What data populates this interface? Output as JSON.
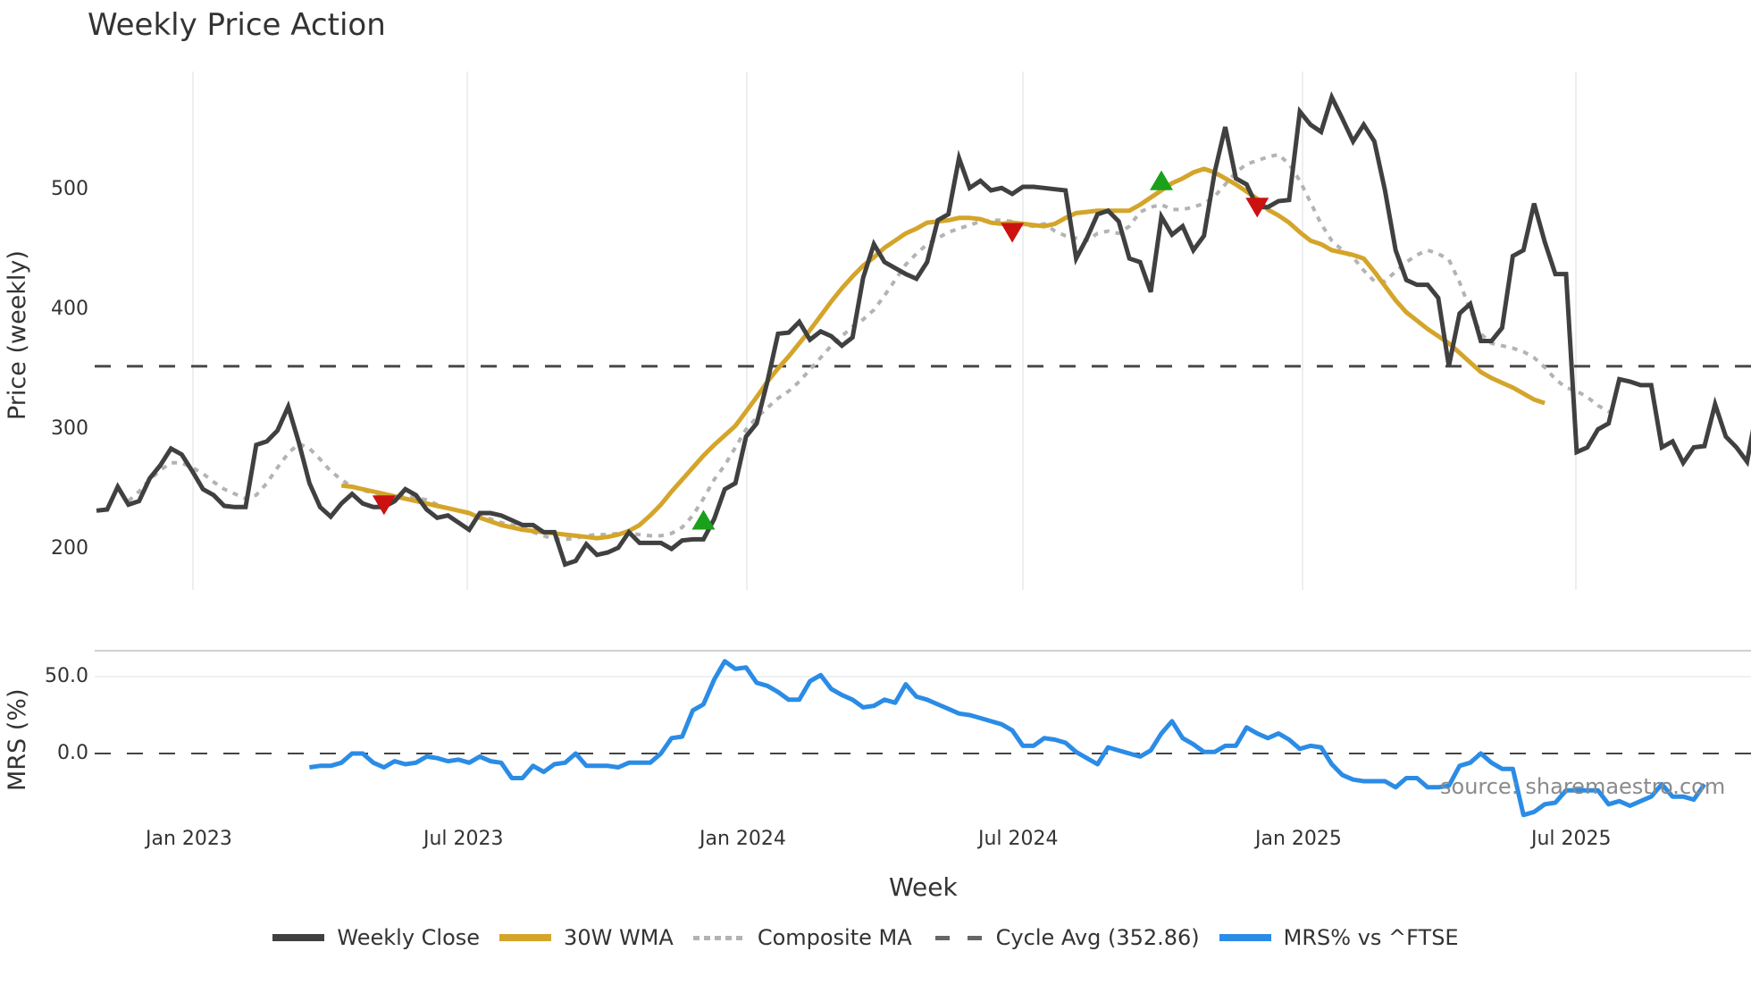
{
  "title": "Weekly Price Action",
  "source_text": "source: sharemaestro.com",
  "xaxis_title": "Week",
  "price_axis_title": "Price (weekly)",
  "mrs_axis_title": "MRS (%)",
  "legend": [
    {
      "label": "Weekly Close",
      "color": "#404040",
      "style": "solid"
    },
    {
      "label": "30W WMA",
      "color": "#d4a52a",
      "style": "solid"
    },
    {
      "label": "Composite MA",
      "color": "#b0b0b0",
      "style": "dotted"
    },
    {
      "label": "Cycle Avg (352.86)",
      "color": "#555555",
      "style": "dashed"
    },
    {
      "label": "MRS% vs ^FTSE",
      "color": "#2b8ce6",
      "style": "solid"
    }
  ],
  "chart_data": [
    {
      "type": "line",
      "title": "Weekly Price Action",
      "xlabel": "Week",
      "ylabel": "Price (weekly)",
      "x_tick_labels": [
        "Jan 2023",
        "Jul 2023",
        "Jan 2024",
        "Jul 2024",
        "Jan 2025",
        "Jul 2025"
      ],
      "y_ticks": [
        200,
        300,
        400,
        500
      ],
      "ylim": [
        168,
        590
      ],
      "grid": true,
      "legend_position": "bottom",
      "reference_lines": [
        {
          "name": "Cycle Avg (352.86)",
          "value": 352.86,
          "style": "dashed"
        }
      ],
      "markers": [
        {
          "type": "sell",
          "shape": "triangle-down",
          "color": "#cc1111",
          "week_index": 27,
          "value": 238
        },
        {
          "type": "buy",
          "shape": "triangle-up",
          "color": "#1aa01a",
          "week_index": 57,
          "value": 223
        },
        {
          "type": "sell",
          "shape": "triangle-down",
          "color": "#cc1111",
          "week_index": 86,
          "value": 466
        },
        {
          "type": "buy",
          "shape": "triangle-up",
          "color": "#1aa01a",
          "week_index": 100,
          "value": 507
        },
        {
          "type": "sell",
          "shape": "triangle-down",
          "color": "#cc1111",
          "week_index": 109,
          "value": 487
        }
      ],
      "series": [
        {
          "name": "Weekly Close",
          "start_week_index": 0,
          "values": [
            232,
            233,
            252,
            237,
            240,
            259,
            270,
            284,
            279,
            265,
            250,
            245,
            236,
            235,
            235,
            287,
            290,
            299,
            319,
            289,
            255,
            235,
            227,
            238,
            246,
            238,
            235,
            235,
            240,
            250,
            245,
            233,
            226,
            228,
            222,
            216,
            230,
            230,
            228,
            224,
            220,
            220,
            214,
            214,
            187,
            190,
            204,
            195,
            197,
            201,
            214,
            205,
            205,
            205,
            200,
            207,
            208,
            208,
            225,
            250,
            255,
            294,
            305,
            340,
            380,
            381,
            390,
            375,
            382,
            378,
            370,
            377,
            427,
            455,
            440,
            435,
            430,
            426,
            440,
            475,
            480,
            527,
            502,
            508,
            500,
            502,
            497,
            503,
            503,
            502,
            501,
            500,
            443,
            460,
            480,
            483,
            474,
            443,
            440,
            415,
            478,
            463,
            470,
            450,
            462,
            515,
            553,
            510,
            505,
            486,
            486,
            491,
            492,
            566,
            555,
            549,
            578,
            560,
            541,
            555,
            541,
            500,
            450,
            425,
            421,
            421,
            410,
            353,
            397,
            405,
            374,
            374,
            385,
            445,
            450,
            489,
            457,
            430,
            430,
            281,
            285,
            300,
            305,
            342,
            340,
            337,
            337,
            285,
            290,
            272,
            285,
            286,
            321,
            294,
            285,
            273,
            320
          ]
        },
        {
          "name": "30W WMA",
          "start_week_index": 23,
          "values": [
            253,
            252,
            250,
            248,
            246,
            244,
            242,
            240,
            238,
            236,
            234,
            232,
            230,
            226,
            223,
            220,
            218,
            216,
            215,
            214,
            213,
            212,
            211,
            210,
            209,
            210,
            212,
            215,
            220,
            228,
            237,
            248,
            258,
            268,
            278,
            287,
            295,
            303,
            315,
            327,
            340,
            351,
            361,
            372,
            383,
            395,
            407,
            418,
            428,
            437,
            444,
            452,
            458,
            464,
            468,
            473,
            474,
            475,
            477,
            477,
            476,
            473,
            472,
            473,
            472,
            471,
            470,
            472,
            477,
            481,
            482,
            483,
            483,
            483,
            483,
            488,
            494,
            500,
            506,
            510,
            515,
            518,
            515,
            510,
            505,
            499,
            493,
            484,
            479,
            473,
            465,
            458,
            455,
            450,
            448,
            446,
            443,
            432,
            420,
            408,
            398,
            391,
            384,
            378,
            372,
            364,
            356,
            348,
            343,
            339,
            335,
            330,
            325,
            322
          ]
        },
        {
          "name": "Composite MA",
          "start_week_index": 3,
          "values": [
            240,
            248,
            258,
            266,
            272,
            272,
            268,
            263,
            256,
            250,
            246,
            242,
            245,
            255,
            268,
            280,
            288,
            284,
            275,
            265,
            258,
            252,
            249,
            247,
            245,
            244,
            244,
            243,
            241,
            237,
            234,
            232,
            230,
            228,
            225,
            222,
            220,
            218,
            214,
            211,
            208,
            208,
            209,
            211,
            212,
            212,
            213,
            213,
            212,
            211,
            211,
            213,
            218,
            228,
            242,
            258,
            270,
            285,
            300,
            310,
            318,
            326,
            332,
            340,
            350,
            360,
            370,
            378,
            386,
            392,
            400,
            412,
            425,
            438,
            447,
            455,
            460,
            465,
            468,
            471,
            474,
            475,
            475,
            474,
            471,
            470,
            472,
            466,
            462,
            460,
            458,
            464,
            466,
            464,
            470,
            482,
            486,
            488,
            484,
            484,
            486,
            489,
            495,
            505,
            515,
            522,
            525,
            528,
            530,
            522,
            508,
            490,
            472,
            458,
            450,
            444,
            433,
            424,
            424,
            432,
            440,
            446,
            450,
            447,
            442,
            423,
            400,
            380,
            372,
            370,
            368,
            365,
            360,
            352,
            342,
            335,
            332,
            327,
            320,
            315,
            314
          ]
        },
        {
          "name": "Cycle Avg (352.86)",
          "values": [
            352.86
          ]
        }
      ]
    },
    {
      "type": "line",
      "title": "MRS% vs ^FTSE",
      "ylabel": "MRS (%)",
      "y_ticks": [
        0.0,
        50.0
      ],
      "y_tick_labels": [
        "0.0",
        "50.0"
      ],
      "ylim": [
        -45,
        70
      ],
      "reference_lines": [
        {
          "value": 0,
          "style": "dashed"
        }
      ],
      "series": [
        {
          "name": "MRS% vs ^FTSE",
          "start_week_index": 20,
          "values": [
            -9,
            -8,
            -8,
            -6,
            0,
            0,
            -6,
            -9,
            -5,
            -7,
            -6,
            -2,
            -3,
            -5,
            -4,
            -6,
            -2,
            -5,
            -6,
            -16,
            -16,
            -8,
            -12,
            -7,
            -6,
            0,
            -8,
            -8,
            -8,
            -9,
            -6,
            -6,
            -6,
            0,
            10,
            11,
            28,
            32,
            48,
            60,
            55,
            56,
            46,
            44,
            40,
            35,
            35,
            47,
            51,
            42,
            38,
            35,
            30,
            31,
            35,
            33,
            45,
            37,
            35,
            32,
            29,
            26,
            25,
            23,
            21,
            19,
            15,
            5,
            5,
            10,
            9,
            7,
            1,
            -3,
            -7,
            4,
            2,
            0,
            -2,
            2,
            13,
            21,
            10,
            6,
            1,
            1,
            5,
            5,
            17,
            13,
            10,
            13,
            9,
            3,
            5,
            4,
            -7,
            -14,
            -17,
            -18,
            -18,
            -18,
            -22,
            -16,
            -16,
            -22,
            -22,
            -21,
            -8,
            -6,
            0,
            -6,
            -10,
            -10,
            -40,
            -38,
            -33,
            -32,
            -24,
            -24,
            -24,
            -24,
            -33,
            -31,
            -34,
            -31,
            -28,
            -20,
            -28,
            -28,
            -30,
            -20
          ]
        }
      ]
    }
  ]
}
